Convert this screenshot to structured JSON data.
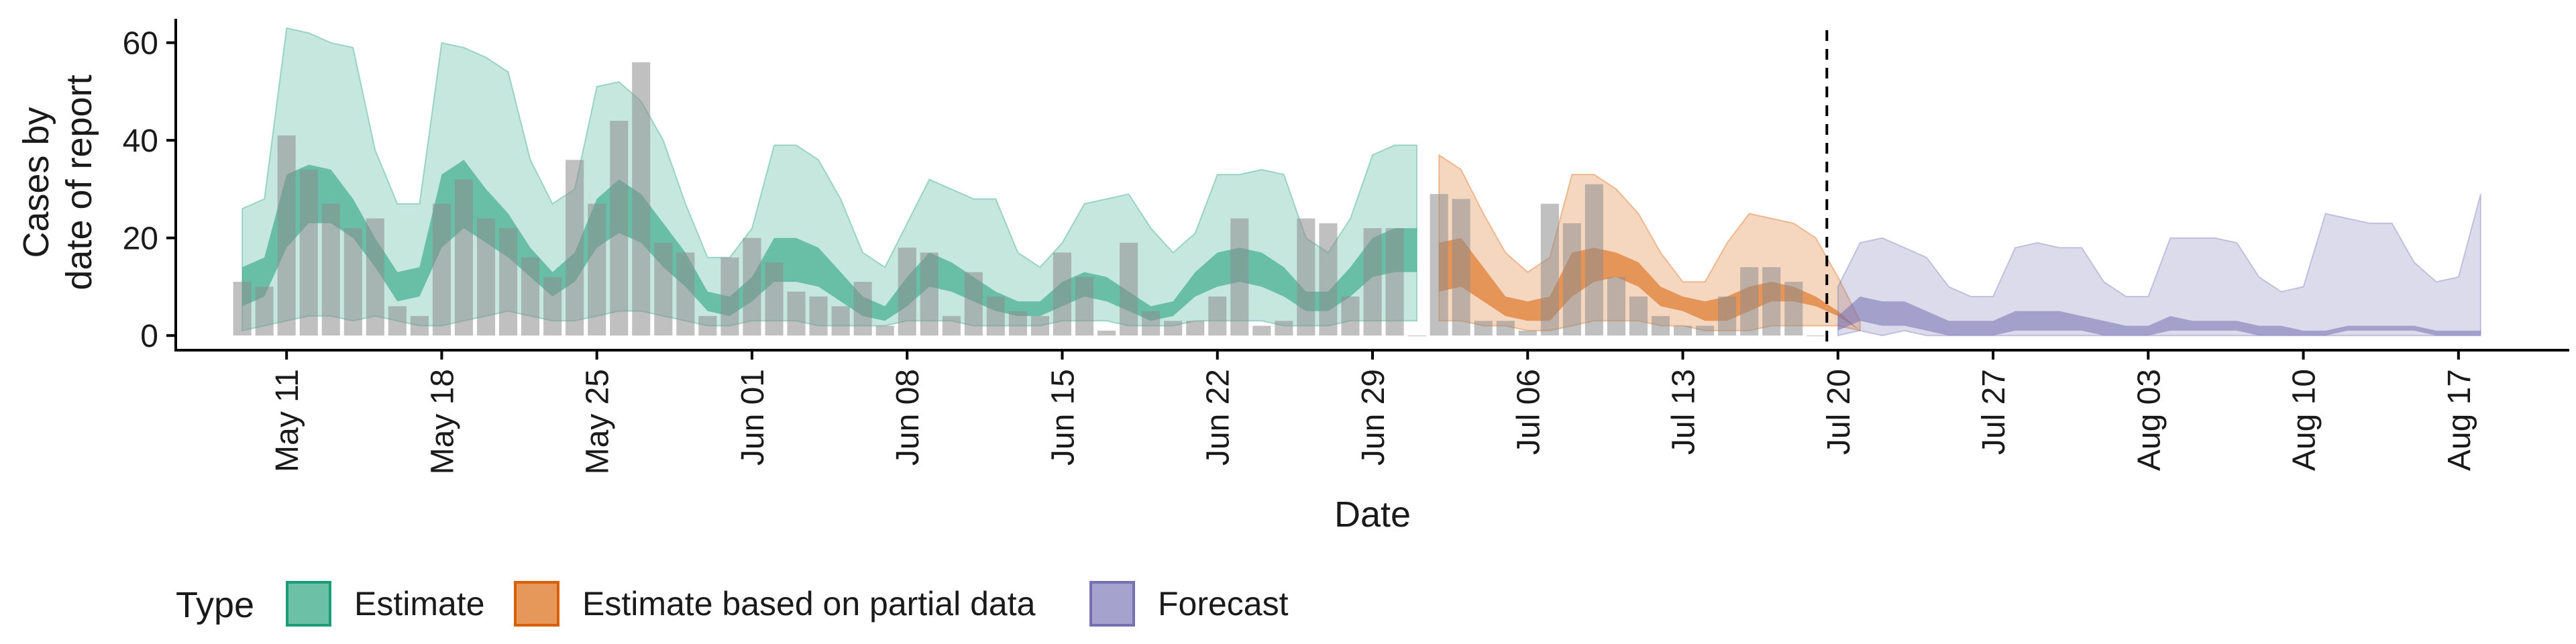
{
  "chart_data": {
    "type": "area",
    "xlabel": "Date",
    "ylabel_lines": [
      "Cases by",
      "date of report"
    ],
    "ylim": [
      -3,
      66
    ],
    "yticks": [
      0,
      20,
      40,
      60
    ],
    "xlim": [
      "2020-05-06",
      "2020-08-22"
    ],
    "xticks": [
      "2020-05-11",
      "2020-05-18",
      "2020-05-25",
      "2020-06-01",
      "2020-06-08",
      "2020-06-15",
      "2020-06-22",
      "2020-06-29",
      "2020-07-06",
      "2020-07-13",
      "2020-07-20",
      "2020-07-27",
      "2020-08-03",
      "2020-08-10",
      "2020-08-17"
    ],
    "xtick_labels": [
      "May 11",
      "May 18",
      "May 25",
      "Jun 01",
      "Jun 08",
      "Jun 15",
      "Jun 22",
      "Jun 29",
      "Jul 06",
      "Jul 13",
      "Jul 20",
      "Jul 27",
      "Aug 03",
      "Aug 10",
      "Aug 17"
    ],
    "forecast_start": "2020-07-19",
    "legend": {
      "title": "Type",
      "position": "bottom",
      "items": [
        {
          "label": "Estimate",
          "color": "#1b9e77"
        },
        {
          "label": "Estimate based on partial data",
          "color": "#d95f02"
        },
        {
          "label": "Forecast",
          "color": "#7570b3"
        }
      ]
    },
    "reported_cases": {
      "start": "2020-05-09",
      "values": [
        11,
        10,
        41,
        34,
        27,
        22,
        24,
        6,
        4,
        27,
        32,
        24,
        22,
        16,
        12,
        36,
        27,
        44,
        56,
        19,
        17,
        4,
        16,
        20,
        15,
        9,
        8,
        6,
        11,
        2,
        18,
        17,
        4,
        13,
        8,
        5,
        4,
        17,
        12,
        1,
        19,
        5,
        3,
        3,
        8,
        24,
        2,
        3,
        24,
        23,
        8,
        22,
        22,
        0,
        29,
        28,
        3,
        3,
        1,
        27,
        23,
        31,
        12,
        8,
        4,
        2,
        2,
        8,
        14,
        14,
        11,
        0
      ]
    },
    "series": [
      {
        "name": "Estimate",
        "start": "2020-05-09",
        "lower90": [
          1,
          2,
          3,
          4,
          4,
          3,
          4,
          3,
          2,
          2,
          3,
          4,
          5,
          4,
          3,
          3,
          4,
          5,
          5,
          4,
          3,
          2,
          2,
          3,
          3,
          3,
          2,
          2,
          2,
          2,
          3,
          3,
          3,
          2,
          2,
          2,
          2,
          3,
          3,
          3,
          2,
          2,
          2,
          3,
          3,
          3,
          3,
          2,
          2,
          2,
          3,
          3,
          3,
          3
        ],
        "lower50": [
          6,
          8,
          18,
          23,
          23,
          20,
          14,
          7,
          8,
          18,
          22,
          19,
          16,
          12,
          8,
          11,
          18,
          21,
          19,
          14,
          10,
          5,
          4,
          7,
          11,
          11,
          10,
          7,
          4,
          3,
          6,
          10,
          9,
          7,
          5,
          4,
          4,
          6,
          8,
          7,
          5,
          3,
          4,
          8,
          10,
          11,
          10,
          8,
          5,
          5,
          8,
          12,
          13,
          13
        ],
        "upper50": [
          14,
          16,
          33,
          35,
          34,
          28,
          20,
          13,
          14,
          33,
          36,
          30,
          25,
          18,
          13,
          17,
          28,
          32,
          29,
          23,
          17,
          9,
          8,
          12,
          20,
          20,
          18,
          13,
          8,
          6,
          12,
          17,
          15,
          12,
          9,
          7,
          7,
          11,
          13,
          12,
          9,
          6,
          7,
          13,
          17,
          18,
          17,
          14,
          9,
          9,
          14,
          20,
          22,
          22
        ],
        "upper90": [
          26,
          28,
          63,
          62,
          60,
          59,
          38,
          27,
          27,
          60,
          59,
          57,
          54,
          36,
          27,
          30,
          51,
          52,
          48,
          40,
          27,
          16,
          16,
          22,
          39,
          39,
          36,
          28,
          17,
          14,
          23,
          32,
          30,
          28,
          28,
          17,
          14,
          19,
          27,
          28,
          29,
          22,
          17,
          21,
          33,
          33,
          34,
          33,
          20,
          17,
          24,
          37,
          39,
          39
        ]
      },
      {
        "name": "Estimate based on partial data",
        "start": "2020-07-02",
        "lower90": [
          3,
          3,
          2,
          2,
          1,
          1,
          2,
          3,
          3,
          3,
          2,
          2,
          1,
          1,
          1,
          2,
          2,
          2,
          2,
          1
        ],
        "lower50": [
          9,
          10,
          7,
          4,
          3,
          3,
          8,
          11,
          12,
          10,
          6,
          5,
          3,
          3,
          5,
          7,
          7,
          6,
          4,
          1
        ],
        "upper50": [
          19,
          20,
          14,
          8,
          7,
          8,
          17,
          18,
          17,
          15,
          10,
          8,
          7,
          8,
          10,
          11,
          10,
          8,
          5,
          1
        ],
        "upper90": [
          37,
          34,
          25,
          17,
          13,
          16,
          33,
          33,
          30,
          25,
          17,
          11,
          11,
          19,
          25,
          24,
          23,
          20,
          12,
          3
        ]
      },
      {
        "name": "Forecast",
        "start": "2020-07-20",
        "lower90": [
          0,
          1,
          0,
          1,
          0,
          0,
          0,
          0,
          0,
          0,
          0,
          0,
          0,
          0,
          0,
          0,
          0,
          0,
          0,
          0,
          0,
          0,
          0,
          0,
          0,
          0,
          0,
          0,
          0,
          0
        ],
        "lower50": [
          1,
          3,
          2,
          2,
          1,
          0,
          0,
          0,
          1,
          1,
          1,
          1,
          0,
          0,
          0,
          1,
          1,
          1,
          1,
          0,
          0,
          0,
          0,
          1,
          1,
          1,
          1,
          0,
          0,
          0
        ],
        "upper50": [
          4,
          8,
          7,
          7,
          5,
          3,
          3,
          3,
          5,
          5,
          5,
          4,
          3,
          2,
          2,
          4,
          3,
          3,
          3,
          2,
          2,
          1,
          1,
          2,
          2,
          2,
          2,
          1,
          1,
          1
        ],
        "upper90": [
          10,
          19,
          20,
          18,
          16,
          10,
          8,
          8,
          18,
          19,
          18,
          18,
          11,
          8,
          8,
          20,
          20,
          20,
          19,
          12,
          9,
          10,
          25,
          24,
          23,
          23,
          15,
          11,
          12,
          29
        ]
      }
    ]
  }
}
